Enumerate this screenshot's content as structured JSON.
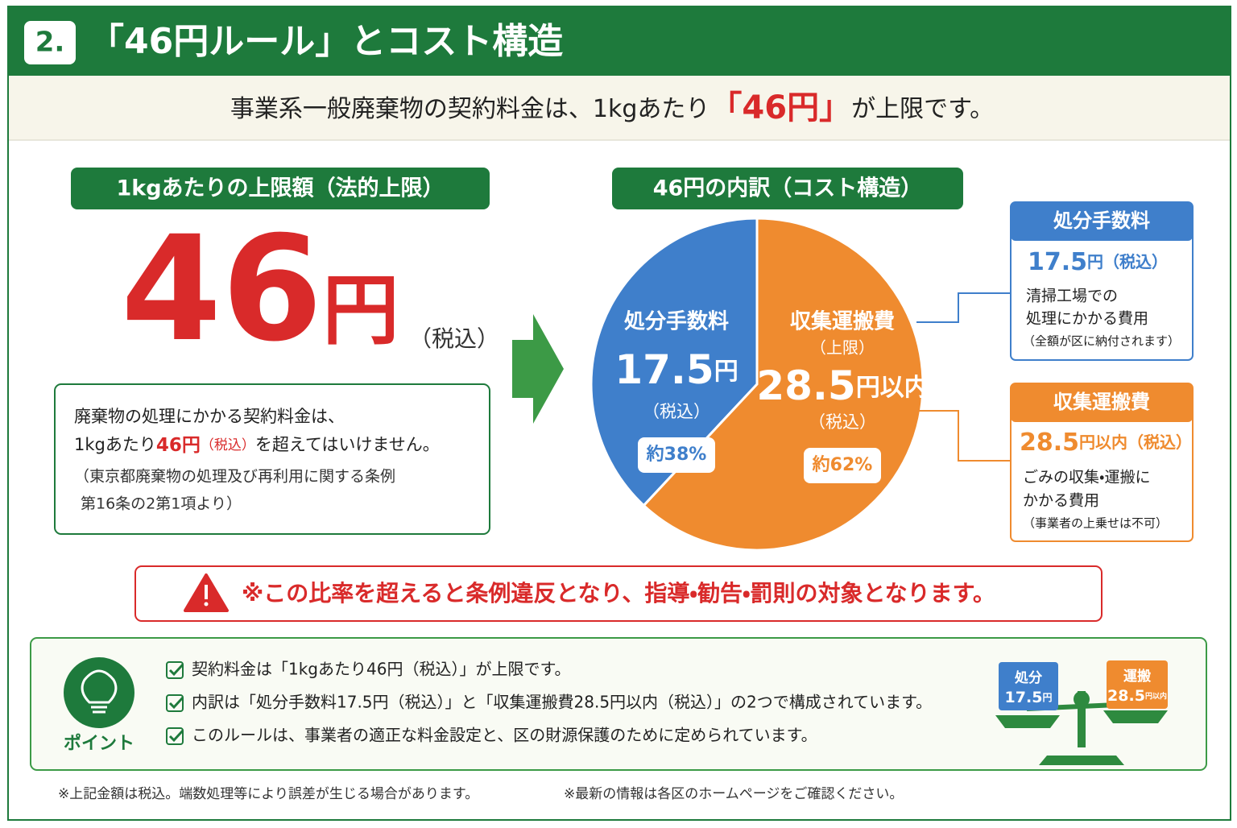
{
  "header": {
    "number": "2.",
    "title": "「46円ルール」とコスト構造"
  },
  "banner": {
    "before": "事業系一般廃棄物の契約料金は、1kgあたり",
    "highlight": "「46円」",
    "after": "が上限です。"
  },
  "limit": {
    "heading": "1kgあたりの上限額（法的上限）",
    "amount": "46",
    "unit": "円",
    "tax": "（税込）",
    "note": {
      "line1": "廃棄物の処理にかかる契約料金は、",
      "line2_before": "1kgあたり",
      "line2_amount": "46円",
      "line2_tax": "（税込）",
      "line2_after": "を超えてはいけません。",
      "source1": "（東京都廃棄物の処理及び再利用に関する条例",
      "source2": "第16条の2第1項より）"
    }
  },
  "breakdown": {
    "heading": "46円の内訳（コスト構造）",
    "type": "pie",
    "slices": [
      {
        "name": "処分手数料",
        "value": 17.5,
        "unit": "円",
        "tax": "（税込）",
        "share": "約38%",
        "color": "#3f7fcb"
      },
      {
        "name": "収集運搬費",
        "qualifier": "（上限）",
        "value": 28.5,
        "unit": "円以内",
        "tax": "（税込）",
        "share": "約62%",
        "color": "#ef8b2f"
      }
    ]
  },
  "callouts": [
    {
      "title": "処分手数料",
      "desc1": "清掃工場での",
      "desc2": "処理にかかる費用",
      "note": "（全額が区に納付されます）"
    },
    {
      "title": "収集運搬費",
      "desc1": "ごみの収集・運搬に",
      "desc2": "かかる費用",
      "note": "（事業者の上乗せは不可）"
    }
  ],
  "warning": "※この比率を超えると条例違反となり、指導・勧告・罰則の対象となります。",
  "point": {
    "label": "ポイント",
    "items": [
      "契約料金は「1kgあたり46円（税込）」が上限です。",
      "内訳は「処分手数料17.5円（税込）」と「収集運搬費28.5円以内（税込）」の2つで構成されています。",
      "このルールは、事業者の適正な料金設定と、区の財源保護のために定められています。"
    ]
  },
  "scale": {
    "left": "処分",
    "right": "運搬"
  },
  "footer": [
    "※上記金額は税込。端数処理等により誤差が生じる場合があります。",
    "※最新の情報は各区のホームページをご確認ください。"
  ]
}
